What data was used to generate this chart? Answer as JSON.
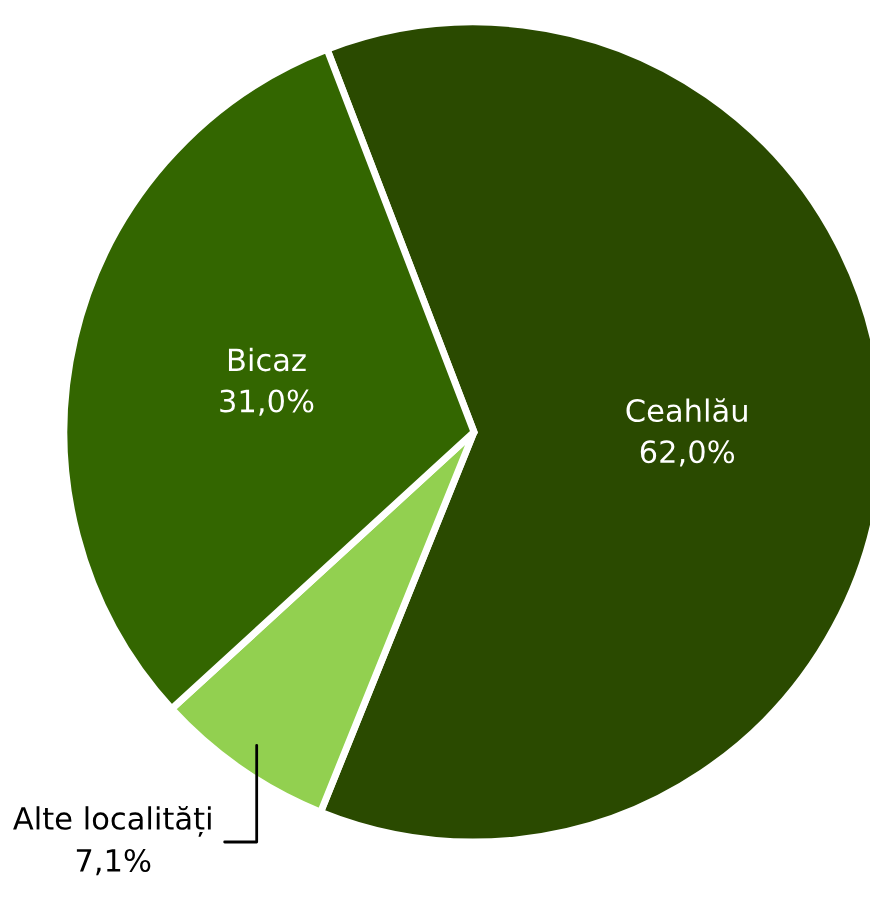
{
  "chart_data": {
    "type": "pie",
    "categories": [
      "Ceahlău",
      "Alte localități",
      "Bicaz"
    ],
    "values": [
      62.0,
      7.1,
      31.0
    ],
    "value_labels": [
      "62,0%",
      "7,1%",
      "31,0%"
    ],
    "colors": [
      "#2a4a00",
      "#92d050",
      "#336600"
    ]
  }
}
